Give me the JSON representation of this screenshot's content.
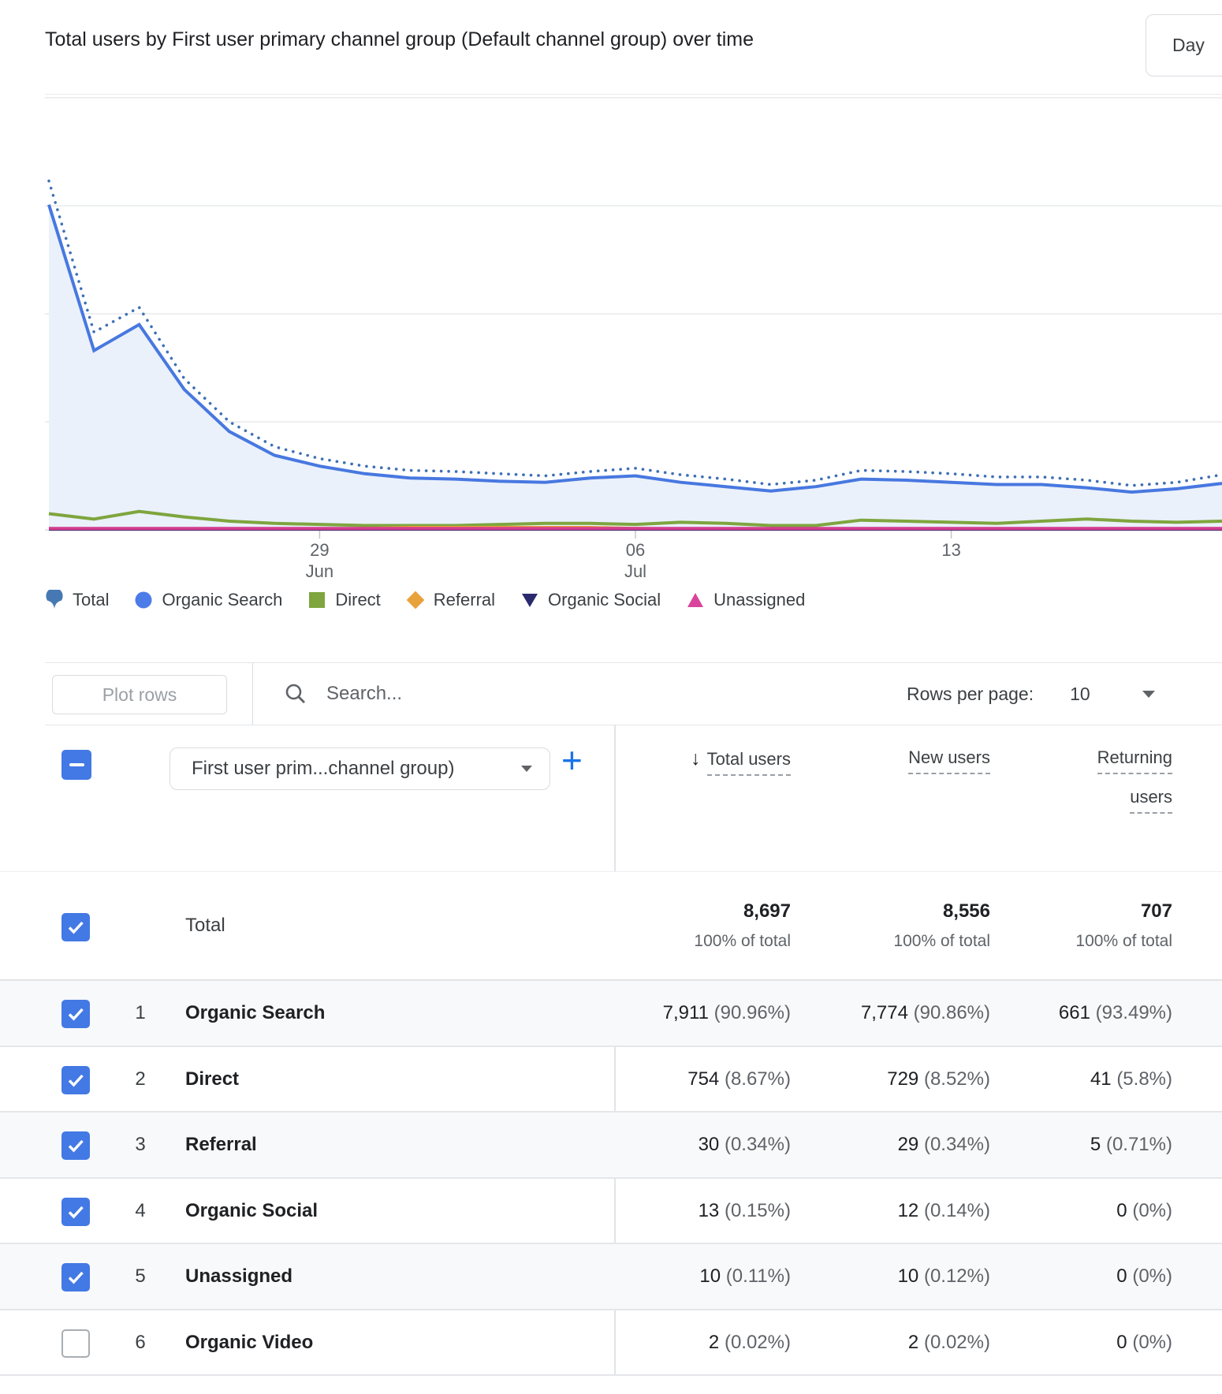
{
  "header": {
    "title": "Total users by First user primary channel group (Default channel group) over time",
    "interval_label": "Day"
  },
  "chart_data": {
    "type": "line",
    "title": "Total users by First user primary channel group (Default channel group) over time",
    "xlabel": "",
    "ylabel": "",
    "grid": true,
    "gridline_values": [
      100,
      200,
      300,
      400
    ],
    "ylim": [
      0,
      430
    ],
    "x_ticks": [
      {
        "index": 6,
        "label": "29",
        "sublabel": "Jun"
      },
      {
        "index": 13,
        "label": "06",
        "sublabel": "Jul"
      },
      {
        "index": 20,
        "label": "13",
        "sublabel": ""
      }
    ],
    "series": [
      {
        "name": "Total",
        "style": "dotted",
        "color": "#3E6FB6",
        "values": [
          323,
          183,
          206,
          140,
          100,
          77,
          66,
          59,
          55,
          54,
          52,
          50,
          54,
          57,
          51,
          47,
          42,
          46,
          55,
          54,
          52,
          49,
          49,
          46,
          41,
          44,
          51
        ]
      },
      {
        "name": "Organic Search",
        "style": "solid",
        "color": "#4878E0",
        "area_fill": "#EAF1FB",
        "values": [
          301,
          166,
          190,
          130,
          91,
          69,
          59,
          52,
          48,
          47,
          45,
          44,
          48,
          50,
          44,
          40,
          36,
          40,
          47,
          46,
          44,
          42,
          42,
          39,
          35,
          38,
          43
        ]
      },
      {
        "name": "Direct",
        "style": "solid",
        "color": "#7EA53E",
        "values": [
          15,
          10,
          17,
          12,
          8,
          6,
          5,
          4,
          4,
          4,
          5,
          6,
          6,
          5,
          7,
          6,
          4,
          4,
          9,
          8,
          7,
          6,
          8,
          10,
          8,
          7,
          8
        ]
      },
      {
        "name": "Referral",
        "style": "solid",
        "color": "#E9A13B",
        "values": [
          1,
          1,
          1,
          1,
          1,
          1,
          1,
          1.5,
          2.5,
          2.5,
          2.5,
          2.5,
          2.5,
          1.5,
          1,
          1,
          1,
          1,
          1,
          1,
          1,
          1,
          1,
          1,
          1,
          1,
          1
        ]
      },
      {
        "name": "Organic Social",
        "style": "solid",
        "color": "#2B2A6E",
        "values": [
          0.4,
          0.4,
          0.4,
          0.4,
          0.4,
          0.4,
          0.4,
          0.4,
          0.4,
          0.4,
          0.4,
          0.4,
          0.4,
          0.4,
          0.4,
          0.4,
          0.4,
          0.4,
          0.4,
          0.4,
          0.4,
          0.4,
          0.4,
          0.4,
          0.4,
          0.4,
          0.4
        ]
      },
      {
        "name": "Unassigned",
        "style": "solid",
        "color": "#D33C8E",
        "values": [
          1.3,
          1.3,
          1.3,
          1.3,
          1.3,
          1.3,
          1.3,
          1.3,
          1.3,
          1.3,
          1.3,
          1.3,
          1.3,
          1.3,
          1.3,
          1.3,
          1.3,
          1.3,
          1.3,
          1.3,
          1.3,
          1.3,
          1.3,
          1.3,
          1.3,
          1.3,
          1.3
        ]
      }
    ],
    "draw_order": [
      "Direct",
      "Referral",
      "Organic Social",
      "Unassigned",
      "Organic Search",
      "Total"
    ],
    "legend_position": "bottom"
  },
  "legend": {
    "items": [
      {
        "label": "Total",
        "marker": "fan",
        "color": "#4679B4"
      },
      {
        "label": "Organic Search",
        "marker": "circle",
        "color": "#4D7CE8"
      },
      {
        "label": "Direct",
        "marker": "square",
        "color": "#7EA53E"
      },
      {
        "label": "Referral",
        "marker": "diamond",
        "color": "#E9A13B"
      },
      {
        "label": "Organic Social",
        "marker": "triangle-down",
        "color": "#2B2A6E"
      },
      {
        "label": "Unassigned",
        "marker": "triangle-up",
        "color": "#D8449B"
      }
    ]
  },
  "controls": {
    "plot_rows_label": "Plot rows",
    "search_placeholder": "Search...",
    "rows_per_page_label": "Rows per page:",
    "rows_per_page_value": "10"
  },
  "table": {
    "dimension_selector": "First user prim...channel group)",
    "columns": [
      {
        "label": "Total users",
        "label_lines": [
          "Total users"
        ],
        "sorted": true
      },
      {
        "label": "New users",
        "label_lines": [
          "New users"
        ],
        "sorted": false
      },
      {
        "label": "Returning users",
        "label_lines": [
          "Returning",
          "users"
        ],
        "sorted": false
      }
    ],
    "total_row": {
      "label": "Total",
      "values": [
        "8,697",
        "8,556",
        "707"
      ],
      "subtexts": [
        "100% of total",
        "100% of total",
        "100% of total"
      ]
    },
    "rows": [
      {
        "index": "1",
        "name": "Organic Search",
        "checked": true,
        "values": [
          {
            "num": "7,911",
            "pct": "(90.96%)"
          },
          {
            "num": "7,774",
            "pct": "(90.86%)"
          },
          {
            "num": "661",
            "pct": "(93.49%)"
          }
        ]
      },
      {
        "index": "2",
        "name": "Direct",
        "checked": true,
        "values": [
          {
            "num": "754",
            "pct": "(8.67%)"
          },
          {
            "num": "729",
            "pct": "(8.52%)"
          },
          {
            "num": "41",
            "pct": "(5.8%)"
          }
        ]
      },
      {
        "index": "3",
        "name": "Referral",
        "checked": true,
        "values": [
          {
            "num": "30",
            "pct": "(0.34%)"
          },
          {
            "num": "29",
            "pct": "(0.34%)"
          },
          {
            "num": "5",
            "pct": "(0.71%)"
          }
        ]
      },
      {
        "index": "4",
        "name": "Organic Social",
        "checked": true,
        "values": [
          {
            "num": "13",
            "pct": "(0.15%)"
          },
          {
            "num": "12",
            "pct": "(0.14%)"
          },
          {
            "num": "0",
            "pct": "(0%)"
          }
        ]
      },
      {
        "index": "5",
        "name": "Unassigned",
        "checked": true,
        "values": [
          {
            "num": "10",
            "pct": "(0.11%)"
          },
          {
            "num": "10",
            "pct": "(0.12%)"
          },
          {
            "num": "0",
            "pct": "(0%)"
          }
        ]
      },
      {
        "index": "6",
        "name": "Organic Video",
        "checked": false,
        "values": [
          {
            "num": "2",
            "pct": "(0.02%)"
          },
          {
            "num": "2",
            "pct": "(0.02%)"
          },
          {
            "num": "0",
            "pct": "(0%)"
          }
        ]
      }
    ]
  }
}
